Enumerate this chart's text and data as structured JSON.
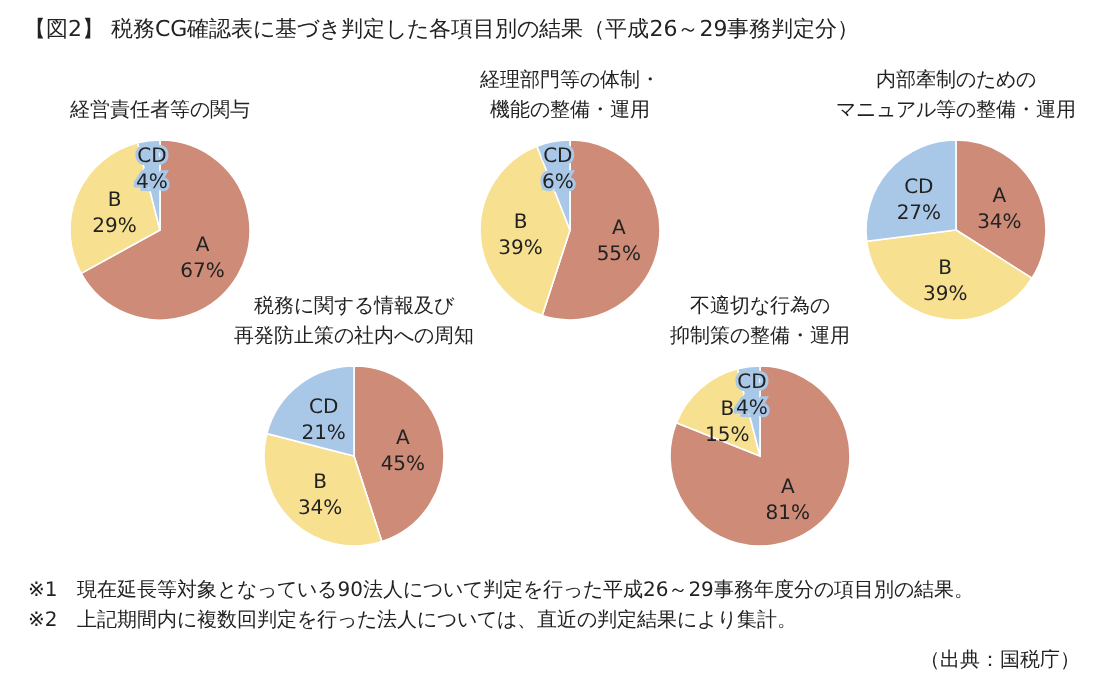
{
  "chart_data": [
    {
      "type": "other",
      "title": "【図2】 税務CG確認表に基づき判定した各項目別の結果（平成26～29事務判定分）",
      "annotations": [
        "※1　現在延長等対象となっている90法人について判定を行った平成26～29事務年度分の項目別の結果。",
        "※2　上記期間内に複数回判定を行った法人については、直近の判定結果により集計。",
        "（出典：国税庁）"
      ]
    },
    {
      "type": "pie",
      "title": "経営責任者等の関与",
      "categories": [
        "A",
        "B",
        "CD"
      ],
      "values": [
        67,
        29,
        4
      ],
      "colors": [
        "#cd8b78",
        "#f7e08f",
        "#a9c8e8"
      ],
      "value_labels": [
        "67%",
        "29%",
        "4%"
      ]
    },
    {
      "type": "pie",
      "title": "経理部門等の体制・機能の整備・運用",
      "categories": [
        "A",
        "B",
        "CD"
      ],
      "values": [
        55,
        39,
        6
      ],
      "colors": [
        "#cd8b78",
        "#f7e08f",
        "#a9c8e8"
      ],
      "value_labels": [
        "55%",
        "39%",
        "6%"
      ]
    },
    {
      "type": "pie",
      "title": "内部牽制のためのマニュアル等の整備・運用",
      "categories": [
        "A",
        "B",
        "CD"
      ],
      "values": [
        34,
        39,
        27
      ],
      "colors": [
        "#cd8b78",
        "#f7e08f",
        "#a9c8e8"
      ],
      "value_labels": [
        "34%",
        "39%",
        "27%"
      ]
    },
    {
      "type": "pie",
      "title": "税務に関する情報及び再発防止策の社内への周知",
      "categories": [
        "A",
        "B",
        "CD"
      ],
      "values": [
        45,
        34,
        21
      ],
      "colors": [
        "#cd8b78",
        "#f7e08f",
        "#a9c8e8"
      ],
      "value_labels": [
        "45%",
        "34%",
        "21%"
      ]
    },
    {
      "type": "pie",
      "title": "不適切な行為の抑制策の整備・運用",
      "categories": [
        "A",
        "B",
        "CD"
      ],
      "values": [
        81,
        15,
        4
      ],
      "colors": [
        "#cd8b78",
        "#f7e08f",
        "#a9c8e8"
      ],
      "value_labels": [
        "81%",
        "15%",
        "4%"
      ]
    }
  ]
}
